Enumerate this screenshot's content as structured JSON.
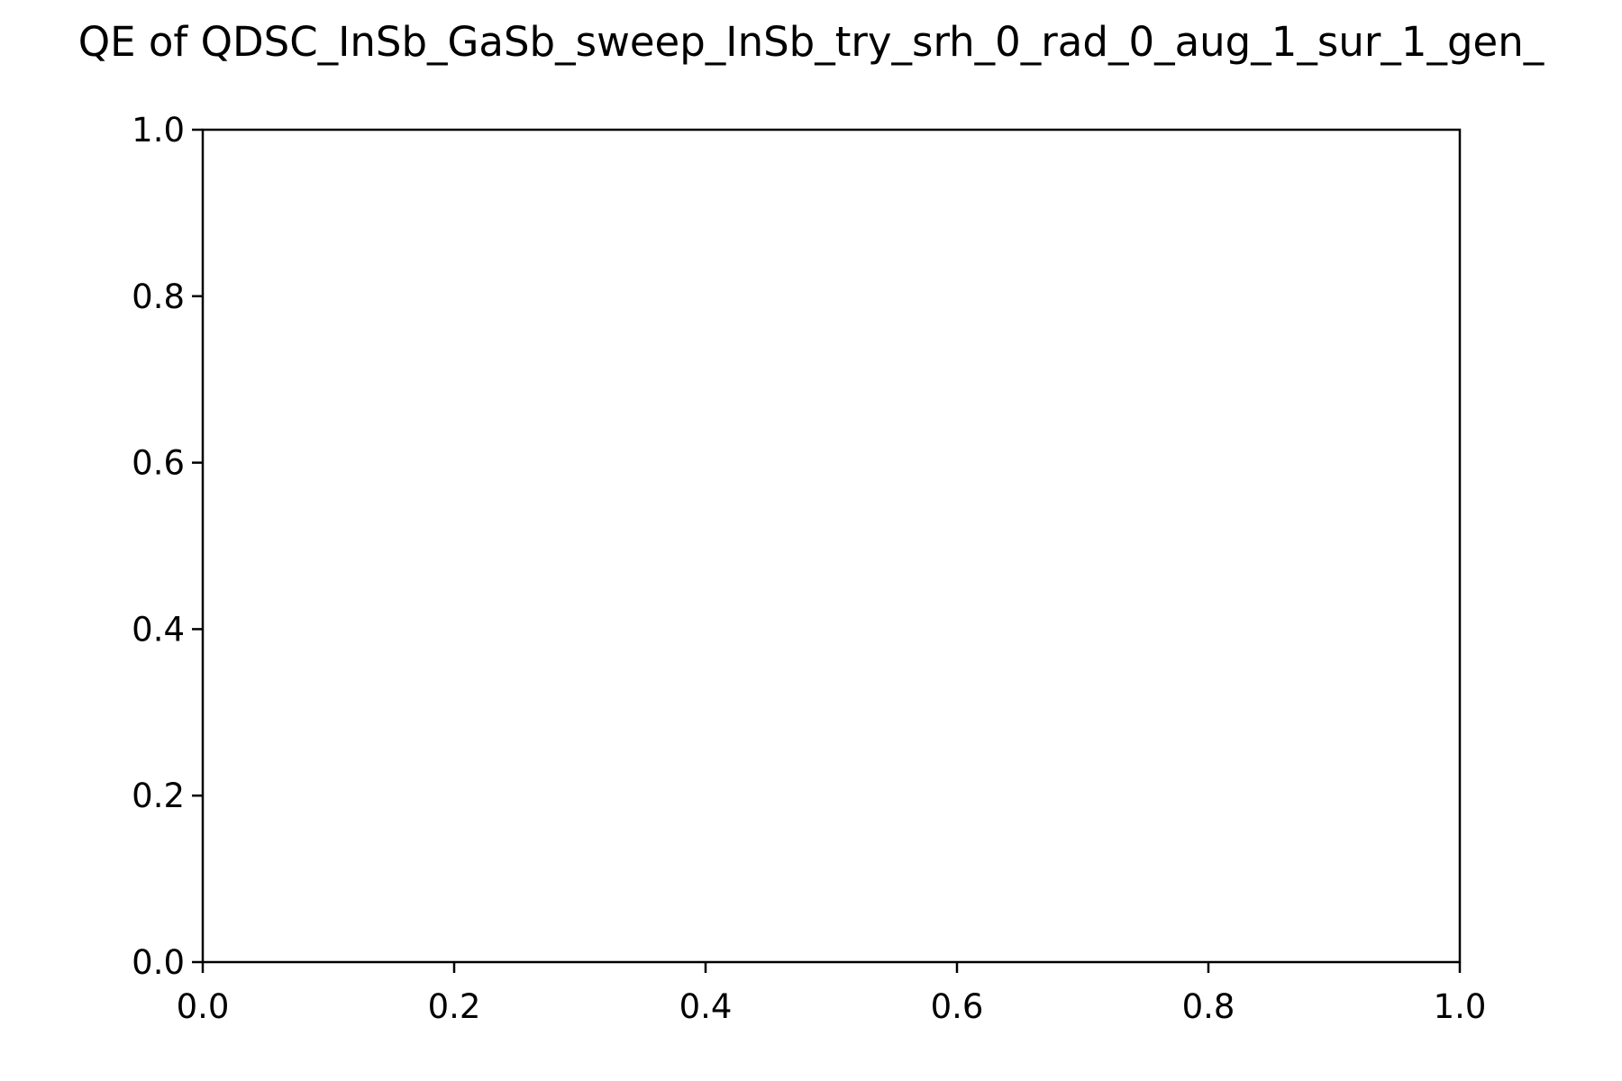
{
  "chart_data": {
    "type": "line",
    "title": "QE of  QDSC_InSb_GaSb_sweep_InSb_try_srh_0_rad_0_aug_1_sur_1_gen_",
    "xlabel": "",
    "ylabel": "",
    "xlim": [
      0.0,
      1.0
    ],
    "ylim": [
      0.0,
      1.0
    ],
    "xticks": [
      "0.0",
      "0.2",
      "0.4",
      "0.6",
      "0.8",
      "1.0"
    ],
    "yticks": [
      "0.0",
      "0.2",
      "0.4",
      "0.6",
      "0.8",
      "1.0"
    ],
    "grid": false,
    "legend": "none",
    "series": []
  },
  "colors": {
    "axes": "#000000",
    "background": "#ffffff"
  }
}
